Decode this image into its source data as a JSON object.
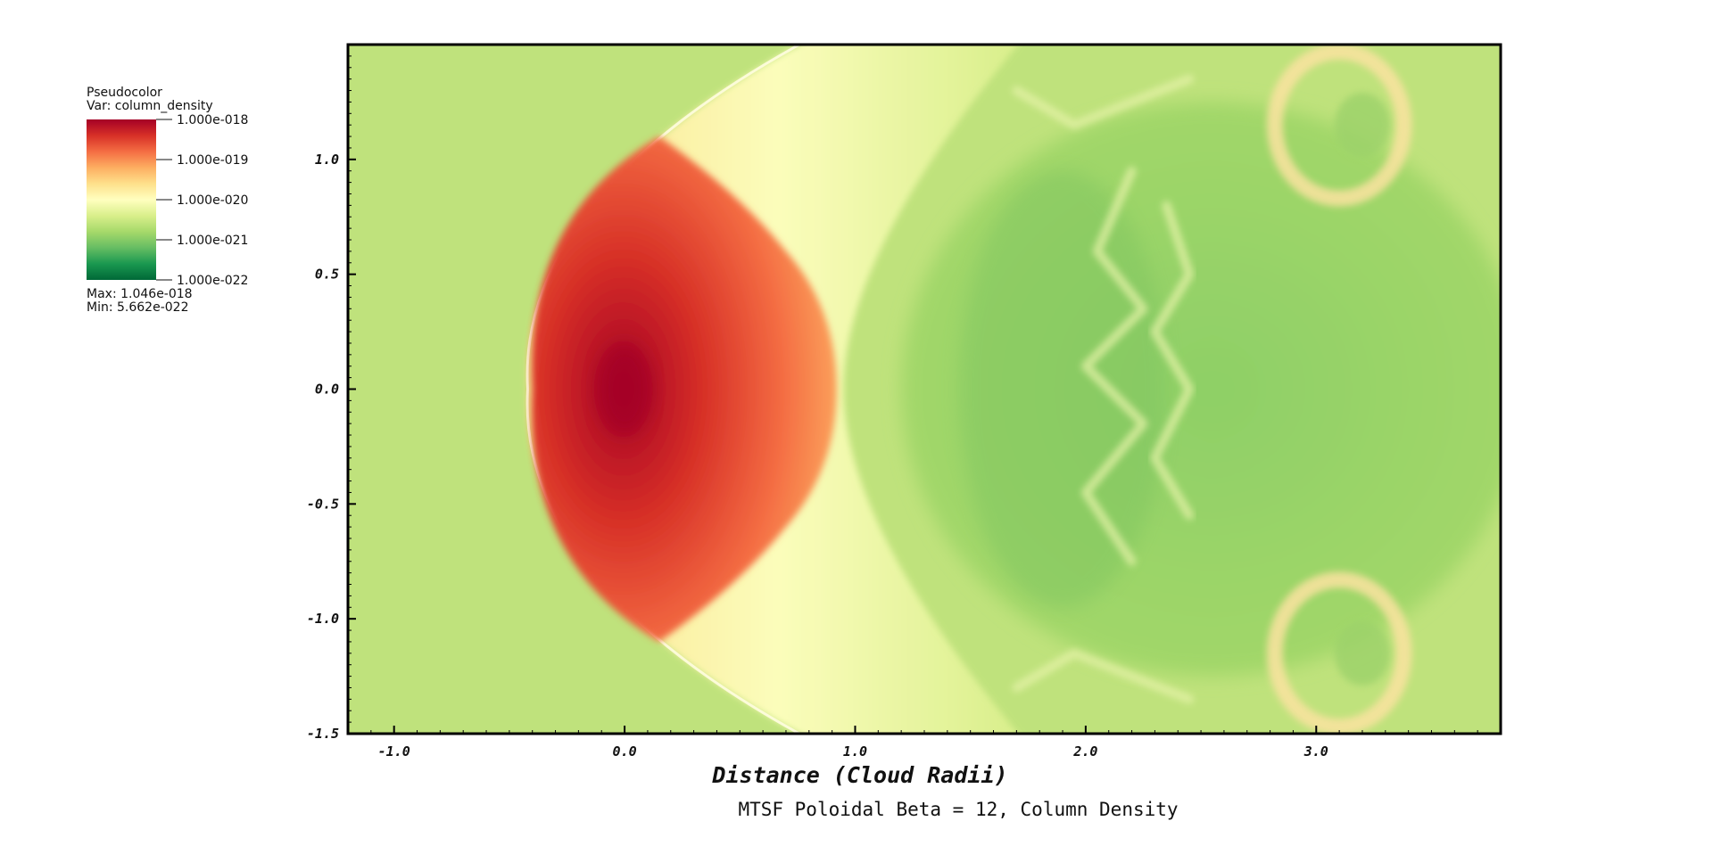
{
  "legend": {
    "plot_type": "Pseudocolor",
    "var_label": "Var: column_density",
    "colorbar_labels": [
      "1.000e-018",
      "1.000e-019",
      "1.000e-020",
      "1.000e-021",
      "1.000e-022"
    ],
    "max_label": "Max:  1.046e-018",
    "min_label": "Min:  5.662e-022"
  },
  "colors": {
    "colormap": [
      "#a50026",
      "#d73027",
      "#f46d43",
      "#fdae61",
      "#fee08b",
      "#ffffbf",
      "#d9ef8b",
      "#a6d96a",
      "#66bd63",
      "#1a9850",
      "#006837"
    ],
    "background_field": "#bfe27c",
    "axis": "#000000"
  },
  "chart_data": {
    "type": "heatmap",
    "title": "MTSF Poloidal Beta = 12, Column Density",
    "xlabel": "Distance (Cloud Radii)",
    "ylabel": "",
    "variable": "column_density",
    "colorbar_scale": "log",
    "value_range": [
      5.662e-22,
      1.046e-18
    ],
    "colorbar_range": [
      1e-22,
      1e-18
    ],
    "xlim": [
      -1.2,
      3.8
    ],
    "ylim": [
      -1.5,
      1.5
    ],
    "x_ticks": [
      -1.0,
      0.0,
      1.0,
      2.0,
      3.0
    ],
    "x_tick_labels": [
      "-1.0",
      "0.0",
      "1.0",
      "2.0",
      "3.0"
    ],
    "y_ticks": [
      1.0,
      0.5,
      0.0,
      -0.5,
      -1.0,
      -1.5
    ],
    "y_tick_labels": [
      "1.0",
      "0.5",
      "0.0",
      "-0.5",
      "-1.0",
      "-1.5"
    ],
    "features": {
      "core_peak": {
        "x": 0.0,
        "y": 0.0,
        "value": 1.046e-18
      },
      "bow_shock_apex_x": -0.42,
      "cloud_trailing_edge_x": 0.92,
      "sheath_extent_y": [
        -1.2,
        1.2
      ],
      "turbulent_wake_x": [
        1.5,
        3.7
      ],
      "wake_ring_centers": [
        {
          "x": 3.1,
          "y": 1.15
        },
        {
          "x": 3.1,
          "y": -1.15
        }
      ]
    }
  }
}
